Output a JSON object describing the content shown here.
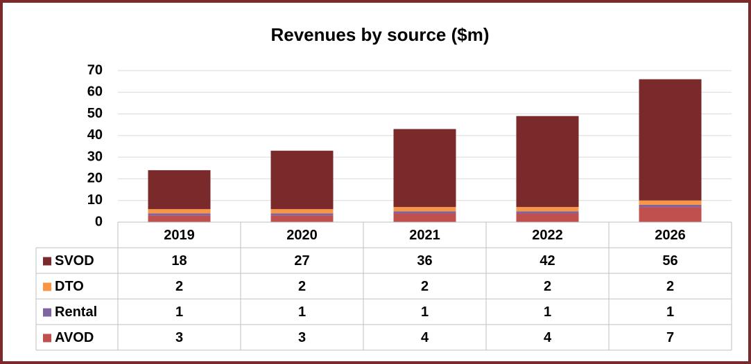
{
  "chart_data": {
    "type": "bar",
    "stacked": true,
    "title": "Revenues by source ($m)",
    "categories": [
      "2019",
      "2020",
      "2021",
      "2022",
      "2026"
    ],
    "series": [
      {
        "name": "SVOD",
        "color": "#7b2a2b",
        "values": [
          18,
          27,
          36,
          42,
          56
        ]
      },
      {
        "name": "DTO",
        "color": "#f79646",
        "values": [
          2,
          2,
          2,
          2,
          2
        ]
      },
      {
        "name": "Rental",
        "color": "#8064a2",
        "values": [
          1,
          1,
          1,
          1,
          1
        ]
      },
      {
        "name": "AVOD",
        "color": "#c0504d",
        "values": [
          3,
          3,
          4,
          4,
          7
        ]
      }
    ],
    "ylim": [
      0,
      70
    ],
    "yticks": [
      0,
      10,
      20,
      30,
      40,
      50,
      60,
      70
    ],
    "grid": true
  }
}
